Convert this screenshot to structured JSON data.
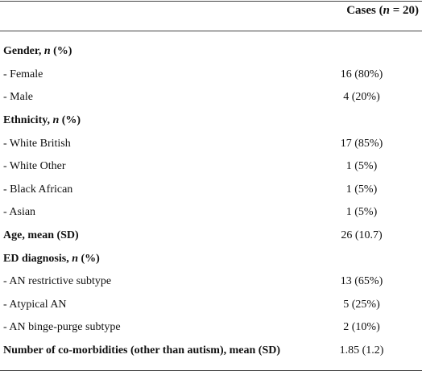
{
  "header": {
    "cases": [
      "Cases (",
      "n",
      " = 20)"
    ]
  },
  "rows": [
    {
      "label": [
        "Gender, ",
        "n",
        " (%)"
      ]
    },
    {
      "label": "- Female",
      "value": "16 (80%)"
    },
    {
      "label": "- Male",
      "value": "4 (20%)"
    },
    {
      "label": [
        "Ethnicity, ",
        "n",
        " (%)"
      ]
    },
    {
      "label": "- White British",
      "value": "17 (85%)"
    },
    {
      "label": "- White Other",
      "value": "1 (5%)"
    },
    {
      "label": "- Black African",
      "value": "1 (5%)"
    },
    {
      "label": "- Asian",
      "value": "1 (5%)"
    },
    {
      "label": "Age, mean (SD)",
      "value": "26 (10.7)"
    },
    {
      "label": [
        "ED diagnosis, ",
        "n",
        " (%)"
      ]
    },
    {
      "label": "- AN restrictive subtype",
      "value": "13 (65%)"
    },
    {
      "label": "- Atypical AN",
      "value": "5 (25%)"
    },
    {
      "label": "- AN binge-purge subtype",
      "value": "2 (10%)"
    },
    {
      "label": "Number of co-morbidities (other than autism), mean (SD)",
      "value": "1.85 (1.2)"
    }
  ]
}
